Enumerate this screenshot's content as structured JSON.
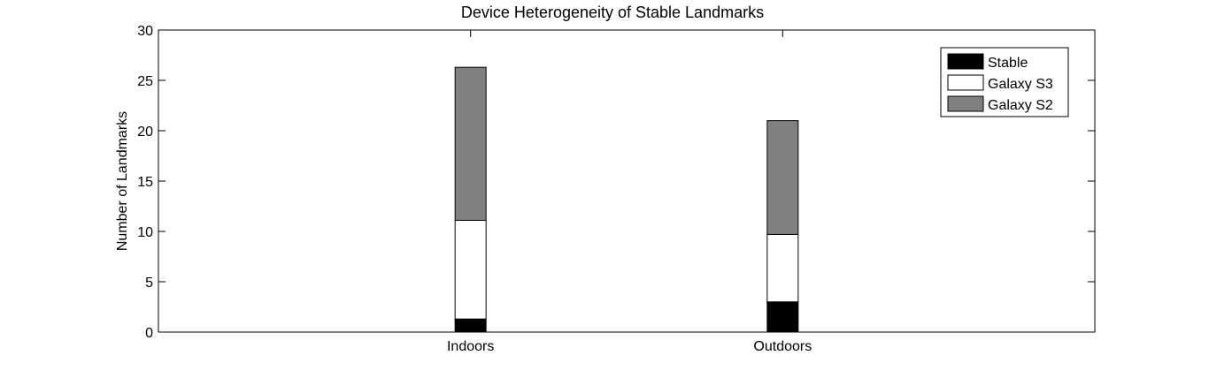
{
  "chart_data": {
    "type": "bar",
    "stacked": true,
    "title": "Device Heterogeneity of Stable Landmarks",
    "xlabel": "",
    "ylabel": "Number of Landmarks",
    "categories": [
      "Indoors",
      "Outdoors"
    ],
    "series": [
      {
        "name": "Stable",
        "values": [
          1.3,
          3.0
        ],
        "color": "#000000"
      },
      {
        "name": "Galaxy S3",
        "values": [
          9.8,
          6.7
        ],
        "color": "#ffffff"
      },
      {
        "name": "Galaxy S2",
        "values": [
          15.2,
          11.3
        ],
        "color": "#808080"
      }
    ],
    "ylim": [
      0,
      30
    ],
    "yticks": [
      0,
      5,
      10,
      15,
      20,
      25,
      30
    ],
    "grid": false,
    "legend_position": "top-right"
  }
}
